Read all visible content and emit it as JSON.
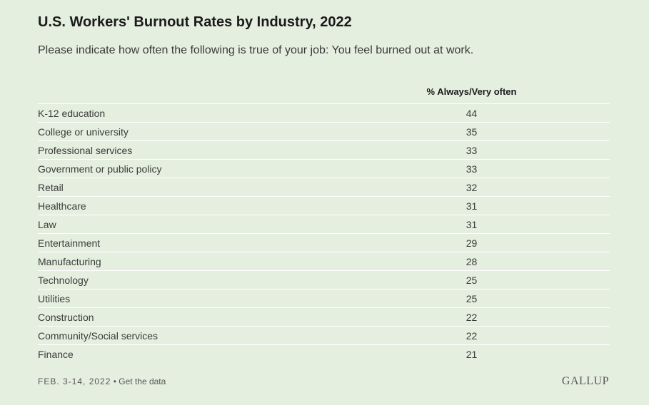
{
  "chart_data": {
    "type": "table",
    "title": "U.S. Workers' Burnout Rates by Industry, 2022",
    "subtitle": "Please indicate how often the following is true of your job: You feel burned out at work.",
    "column_header": "% Always/Very often",
    "rows": [
      {
        "label": "K-12 education",
        "value": 44
      },
      {
        "label": "College or university",
        "value": 35
      },
      {
        "label": "Professional services",
        "value": 33
      },
      {
        "label": "Government or public policy",
        "value": 33
      },
      {
        "label": "Retail",
        "value": 32
      },
      {
        "label": "Healthcare",
        "value": 31
      },
      {
        "label": "Law",
        "value": 31
      },
      {
        "label": "Entertainment",
        "value": 29
      },
      {
        "label": "Manufacturing",
        "value": 28
      },
      {
        "label": "Technology",
        "value": 25
      },
      {
        "label": "Utilities",
        "value": 25
      },
      {
        "label": "Construction",
        "value": 22
      },
      {
        "label": "Community/Social services",
        "value": 22
      },
      {
        "label": "Finance",
        "value": 21
      }
    ]
  },
  "footer": {
    "date": "FEB. 3-14, 2022",
    "separator": " • ",
    "link_text": "Get the data"
  },
  "logo": {
    "text": "GALLUP"
  },
  "colors": {
    "background": "#e5efe0",
    "divider": "#ffffff",
    "title": "#1a1a1a",
    "text": "#3a3a3a"
  }
}
